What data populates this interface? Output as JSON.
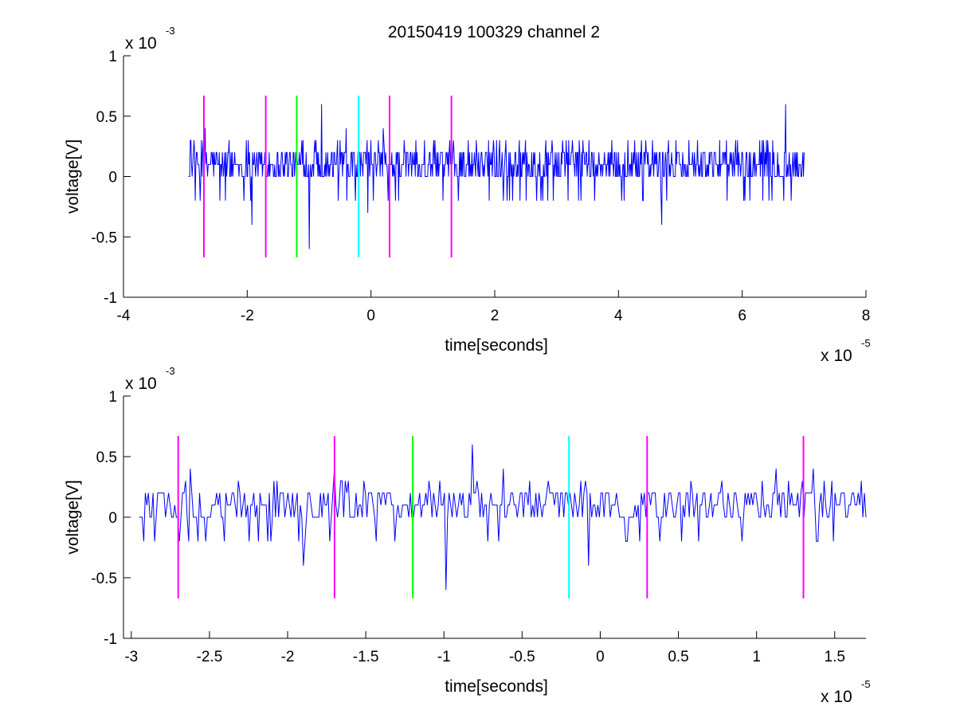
{
  "figure": {
    "title": "20150419 100329 channel 2"
  },
  "chart_data": [
    {
      "type": "line",
      "title": "20150419 100329 channel 2",
      "xlabel": "time[seconds]",
      "ylabel": "voltage[V]",
      "x_multiplier": "x 10",
      "x_exponent": "-5",
      "y_multiplier": "x 10",
      "y_exponent": "-3",
      "xlim": [
        -4e-05,
        8e-05
      ],
      "ylim": [
        -0.001,
        0.001
      ],
      "x_ticks": [
        -4e-05,
        -2e-05,
        0,
        2e-05,
        4e-05,
        6e-05,
        8e-05
      ],
      "x_tick_labels": [
        "-4",
        "-2",
        "0",
        "2",
        "4",
        "6",
        "8"
      ],
      "y_ticks": [
        -0.001,
        -0.0005,
        0,
        0.0005,
        0.001
      ],
      "y_tick_labels": [
        "-1",
        "-0.5",
        "0",
        "0.5",
        "1"
      ],
      "grid": false,
      "series": [
        {
          "color": "#0000ff",
          "x_start": -2.95e-05,
          "x_end": 7e-05,
          "samples": 1000,
          "quantum": 0.0001,
          "typical_range": [
            0,
            0.0002
          ],
          "spikes": [
            [
              -2.68e-05,
              0.0004
            ],
            [
              -1.92e-05,
              -0.0004
            ],
            [
              -1e-05,
              -0.0006
            ],
            [
              -8e-06,
              0.0006
            ],
            [
              -4e-06,
              0.0004
            ],
            [
              -5e-07,
              -0.0003
            ],
            [
              2e-06,
              0.0004
            ],
            [
              4.7e-05,
              -0.0004
            ],
            [
              6.7e-05,
              0.0006
            ]
          ]
        }
      ],
      "markers": [
        {
          "x": -2.7e-05,
          "color": "#ff00ff"
        },
        {
          "x": -1.7e-05,
          "color": "#ff00ff"
        },
        {
          "x": -1.2e-05,
          "color": "#00ff00"
        },
        {
          "x": -2e-06,
          "color": "#00ffff"
        },
        {
          "x": 3e-06,
          "color": "#ff00ff"
        },
        {
          "x": 1.3e-05,
          "color": "#ff00ff"
        }
      ],
      "marker_range": [
        -0.00067,
        0.00067
      ]
    },
    {
      "type": "line",
      "title": "",
      "xlabel": "time[seconds]",
      "ylabel": "voltage[V]",
      "x_multiplier": "x 10",
      "x_exponent": "-5",
      "y_multiplier": "x 10",
      "y_exponent": "-3",
      "xlim": [
        -3.05e-05,
        1.7e-05
      ],
      "ylim": [
        -0.001,
        0.001
      ],
      "x_ticks": [
        -3e-05,
        -2.5e-05,
        -2e-05,
        -1.5e-05,
        -1e-05,
        -5e-06,
        0,
        5e-06,
        1e-05,
        1.5e-05
      ],
      "x_tick_labels": [
        "-3",
        "-2.5",
        "-2",
        "-1.5",
        "-1",
        "-0.5",
        "0",
        "0.5",
        "1",
        "1.5"
      ],
      "y_ticks": [
        -0.001,
        -0.0005,
        0,
        0.0005,
        0.001
      ],
      "y_tick_labels": [
        "-1",
        "-0.5",
        "0",
        "0.5",
        "1"
      ],
      "grid": false,
      "series": [
        {
          "color": "#0000ff",
          "x_start": -2.95e-05,
          "x_end": 1.7e-05,
          "samples": 470,
          "quantum": 0.0001,
          "typical_range": [
            0,
            0.0002
          ],
          "spikes": [
            [
              -2.85e-05,
              -0.0002
            ],
            [
              -2.62e-05,
              0.0004
            ],
            [
              -1.9e-05,
              -0.0004
            ],
            [
              -1.7e-05,
              0.0004
            ],
            [
              -9.9e-06,
              -0.0006
            ],
            [
              -8.2e-06,
              0.0006
            ],
            [
              -6.2e-06,
              0.0004
            ],
            [
              -7e-07,
              -0.0004
            ],
            [
              1.12e-05,
              0.0004
            ],
            [
              1.36e-05,
              0.0004
            ]
          ]
        }
      ],
      "markers": [
        {
          "x": -2.7e-05,
          "color": "#ff00ff"
        },
        {
          "x": -1.7e-05,
          "color": "#ff00ff"
        },
        {
          "x": -1.2e-05,
          "color": "#00ff00"
        },
        {
          "x": -2e-06,
          "color": "#00ffff"
        },
        {
          "x": 3e-06,
          "color": "#ff00ff"
        },
        {
          "x": 1.3e-05,
          "color": "#ff00ff"
        }
      ],
      "marker_range": [
        -0.00067,
        0.00067
      ]
    }
  ]
}
